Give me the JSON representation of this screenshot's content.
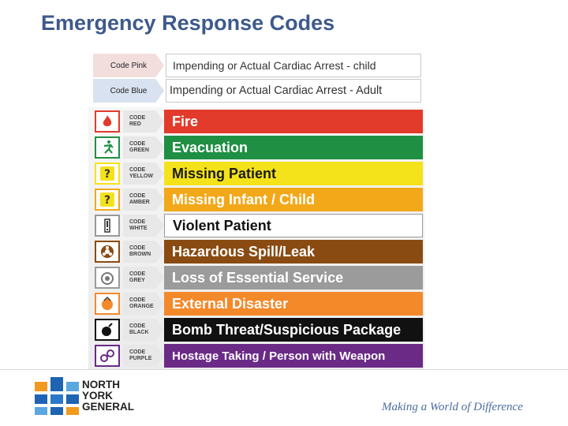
{
  "title": "Emergency Response Codes",
  "codes_top": [
    {
      "tag": "Code Pink",
      "description": "Impending or Actual Cardiac Arrest - child"
    },
    {
      "tag": "Code Blue",
      "description": "Impending or Actual Cardiac Arrest - Adult"
    }
  ],
  "codes": [
    {
      "code_line1": "CODE",
      "code_line2": "RED",
      "label": "Fire",
      "color": "#e23a2b",
      "icon": "flame-icon"
    },
    {
      "code_line1": "CODE",
      "code_line2": "GREEN",
      "label": "Evacuation",
      "color": "#1f8f43",
      "icon": "running-person-icon"
    },
    {
      "code_line1": "CODE",
      "code_line2": "YELLOW",
      "label": "Missing Patient",
      "color": "#f4e21a",
      "icon": "question-mark-icon"
    },
    {
      "code_line1": "CODE",
      "code_line2": "AMBER",
      "label": "Missing Infant / Child",
      "color": "#f2a819",
      "icon": "question-mark-icon"
    },
    {
      "code_line1": "CODE",
      "code_line2": "WHITE",
      "label": "Violent Patient",
      "color": "#ffffff",
      "icon": "exclamation-icon"
    },
    {
      "code_line1": "CODE",
      "code_line2": "BROWN",
      "label": "Hazardous Spill/Leak",
      "color": "#8a4b12",
      "icon": "biohazard-icon"
    },
    {
      "code_line1": "CODE",
      "code_line2": "GREY",
      "label": "Loss of Essential Service",
      "color": "#9b9b9b",
      "icon": "utility-icon"
    },
    {
      "code_line1": "CODE",
      "code_line2": "ORANGE",
      "label": "External Disaster",
      "color": "#f4892a",
      "icon": "disaster-icon"
    },
    {
      "code_line1": "CODE",
      "code_line2": "BLACK",
      "label": "Bomb Threat/Suspicious Package",
      "color": "#111111",
      "icon": "bomb-icon"
    },
    {
      "code_line1": "CODE",
      "code_line2": "PURPLE",
      "label": "Hostage Taking / Person with Weapon",
      "color": "#6a2a86",
      "icon": "handcuffs-icon"
    }
  ],
  "logo": {
    "line1": "NORTH",
    "line2": "YORK",
    "line3": "GENERAL"
  },
  "tagline": "Making a World of Difference"
}
